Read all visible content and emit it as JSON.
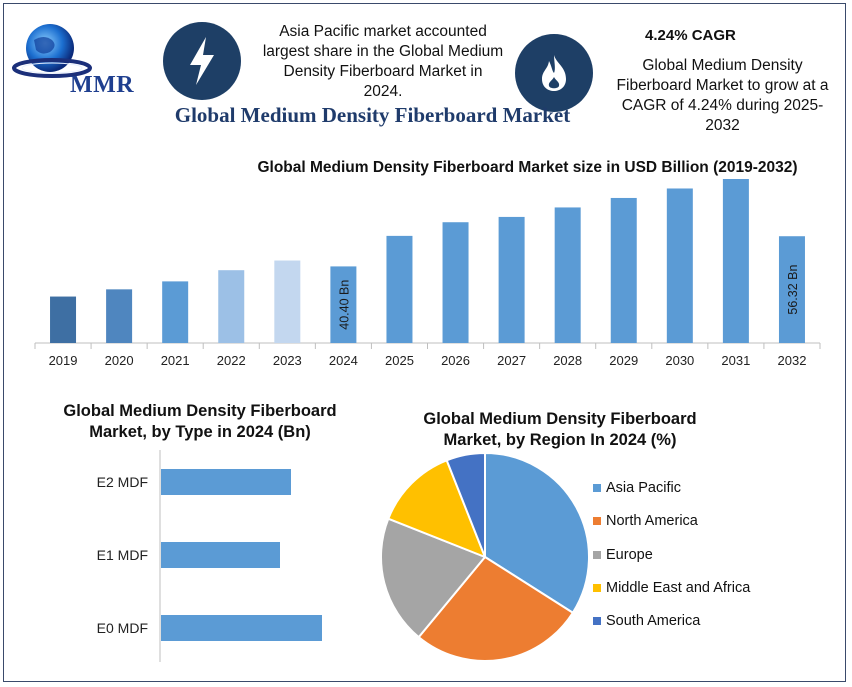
{
  "header": {
    "logo_text": "MMR",
    "logo_icon": "globe-icon",
    "note_left": [
      "Asia Pacific market accounted",
      "largest share in the Global Medium",
      "Density Fiberboard Market in",
      "2024."
    ],
    "note_left_icon": "lightning-icon",
    "main_title": "Global Medium Density Fiberboard Market",
    "note_right_icon": "flame-icon",
    "cagr_head": "4.24% CAGR",
    "note_right": [
      "Global Medium Density",
      "Fiberboard Market to grow at a",
      "CAGR of 4.24% during 2025-",
      "2032"
    ]
  },
  "colors": {
    "bar_blue": "#5b9bd5",
    "bar_2019": "#3e6fa3",
    "bar_2020": "#4f86bf",
    "bar_2022": "#9cc0e6",
    "bar_2023": "#c3d7ef",
    "pie_asia": "#5b9bd5",
    "pie_na": "#ed7d31",
    "pie_eu": "#a5a5a5",
    "pie_mea": "#ffc000",
    "pie_sa": "#4472c4",
    "title_navy": "#1f3b6b"
  },
  "chart_data": [
    {
      "type": "bar",
      "title": "Global Medium Density Fiberboard Market size in USD Billion (2019-2032)",
      "categories": [
        "2019",
        "2020",
        "2021",
        "2022",
        "2023",
        "2024",
        "2025",
        "2026",
        "2027",
        "2028",
        "2029",
        "2030",
        "2031",
        "2032"
      ],
      "values": [
        24.5,
        28.3,
        32.5,
        38.4,
        43.5,
        40.4,
        56.5,
        63.7,
        66.5,
        71.5,
        76.5,
        81.5,
        86.5,
        56.32
      ],
      "data_labels": {
        "2024": "40.40 Bn",
        "2032": "56.32 Bn"
      },
      "grid": false,
      "legend": "none"
    },
    {
      "type": "bar",
      "orientation": "horizontal",
      "title": "Global Medium Density Fiberboard Market, by Type in 2024 (Bn)",
      "categories": [
        "E2 MDF",
        "E1 MDF",
        "E0 MDF"
      ],
      "values": [
        13.0,
        11.9,
        16.1
      ],
      "grid": false
    },
    {
      "type": "pie",
      "title": "Global Medium Density Fiberboard Market, by Region In 2024 (%)",
      "categories": [
        "Asia Pacific",
        "North America",
        "Europe",
        "Middle East and Africa",
        "South America"
      ],
      "values": [
        34,
        27,
        20,
        13,
        6
      ],
      "legend": "right"
    }
  ]
}
